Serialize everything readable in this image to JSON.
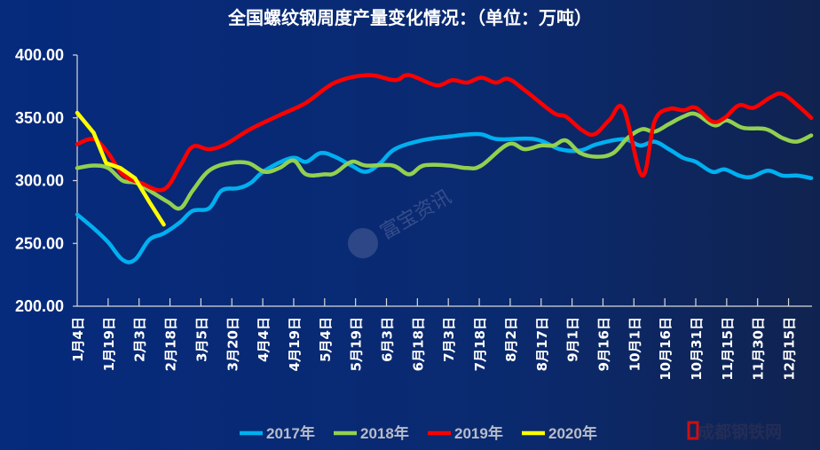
{
  "chart_data": {
    "type": "line",
    "title": "全国螺纹钢周度产量变化情况：（单位：万吨）",
    "xlabel": "",
    "ylabel": "",
    "ylim": [
      200,
      400
    ],
    "yticks": [
      "200.00",
      "250.00",
      "300.00",
      "350.00",
      "400.00"
    ],
    "categories": [
      "1月4日",
      "1月19日",
      "2月3日",
      "2月18日",
      "3月5日",
      "3月20日",
      "4月4日",
      "4月19日",
      "5月4日",
      "5月19日",
      "6月3日",
      "6月18日",
      "7月3日",
      "7月18日",
      "8月2日",
      "8月17日",
      "9月1日",
      "9月16日",
      "10月1日",
      "10月16日",
      "10月31日",
      "11月15日",
      "11月30日",
      "12月15日"
    ],
    "grid": false,
    "legend_position": "bottom",
    "series": [
      {
        "name": "2017年",
        "color": "#00b0f0",
        "points": [
          [
            "1-4",
            273
          ],
          [
            "1-12",
            262
          ],
          [
            "1-19",
            251
          ],
          [
            "1-26",
            237
          ],
          [
            "2-1",
            237
          ],
          [
            "2-8",
            253
          ],
          [
            "2-15",
            258
          ],
          [
            "2-23",
            267
          ],
          [
            "3-1",
            276
          ],
          [
            "3-9",
            278
          ],
          [
            "3-15",
            292
          ],
          [
            "3-23",
            294
          ],
          [
            "3-29",
            298
          ],
          [
            "4-5",
            308
          ],
          [
            "4-18",
            318
          ],
          [
            "4-25",
            315
          ],
          [
            "5-2",
            322
          ],
          [
            "5-9",
            319
          ],
          [
            "5-17",
            312
          ],
          [
            "5-24",
            307
          ],
          [
            "5-31",
            314
          ],
          [
            "6-7",
            325
          ],
          [
            "6-20",
            332
          ],
          [
            "7-3",
            335
          ],
          [
            "7-18",
            337
          ],
          [
            "7-27",
            333
          ],
          [
            "8-14",
            333
          ],
          [
            "8-26",
            325
          ],
          [
            "9-5",
            324
          ],
          [
            "9-13",
            329
          ],
          [
            "9-26",
            333
          ],
          [
            "10-4",
            328
          ],
          [
            "10-11",
            331
          ],
          [
            "10-18",
            325
          ],
          [
            "10-25",
            318
          ],
          [
            "10-31",
            315
          ],
          [
            "11-8",
            307
          ],
          [
            "11-14",
            309
          ],
          [
            "11-21",
            304
          ],
          [
            "11-27",
            303
          ],
          [
            "12-5",
            308
          ],
          [
            "12-12",
            304
          ],
          [
            "12-19",
            304
          ],
          [
            "12-26",
            302
          ]
        ]
      },
      {
        "name": "2018年",
        "color": "#92d050",
        "points": [
          [
            "1-4",
            310
          ],
          [
            "1-12",
            312
          ],
          [
            "1-19",
            310
          ],
          [
            "1-26",
            300
          ],
          [
            "2-2",
            298
          ],
          [
            "2-10",
            290
          ],
          [
            "2-17",
            283
          ],
          [
            "2-23",
            278
          ],
          [
            "3-1",
            292
          ],
          [
            "3-9",
            308
          ],
          [
            "3-19",
            314
          ],
          [
            "3-28",
            314
          ],
          [
            "4-5",
            307
          ],
          [
            "4-12",
            310
          ],
          [
            "4-19",
            316
          ],
          [
            "4-25",
            305
          ],
          [
            "5-4",
            305
          ],
          [
            "5-9",
            306
          ],
          [
            "5-17",
            315
          ],
          [
            "5-24",
            312
          ],
          [
            "6-6",
            312
          ],
          [
            "6-14",
            305
          ],
          [
            "6-21",
            312
          ],
          [
            "7-3",
            312
          ],
          [
            "7-12",
            310
          ],
          [
            "7-19",
            312
          ],
          [
            "8-1",
            329
          ],
          [
            "8-9",
            325
          ],
          [
            "8-17",
            328
          ],
          [
            "8-23",
            328
          ],
          [
            "8-29",
            332
          ],
          [
            "9-5",
            322
          ],
          [
            "9-13",
            319
          ],
          [
            "9-21",
            322
          ],
          [
            "9-28",
            334
          ],
          [
            "10-5",
            341
          ],
          [
            "10-11",
            339
          ],
          [
            "10-18",
            345
          ],
          [
            "10-25",
            351
          ],
          [
            "10-31",
            353
          ],
          [
            "11-9",
            344
          ],
          [
            "11-15",
            348
          ],
          [
            "11-23",
            342
          ],
          [
            "12-4",
            341
          ],
          [
            "12-12",
            334
          ],
          [
            "12-19",
            331
          ],
          [
            "12-26",
            336
          ]
        ]
      },
      {
        "name": "2019年",
        "color": "#ff0000",
        "points": [
          [
            "1-4",
            329
          ],
          [
            "1-12",
            333
          ],
          [
            "1-19",
            322
          ],
          [
            "1-26",
            305
          ],
          [
            "2-4",
            298
          ],
          [
            "2-15",
            293
          ],
          [
            "2-23",
            312
          ],
          [
            "3-1",
            327
          ],
          [
            "3-9",
            325
          ],
          [
            "3-17",
            329
          ],
          [
            "3-29",
            341
          ],
          [
            "4-12",
            352
          ],
          [
            "4-25",
            362
          ],
          [
            "5-9",
            378
          ],
          [
            "5-25",
            384
          ],
          [
            "6-7",
            380
          ],
          [
            "6-14",
            384
          ],
          [
            "6-27",
            376
          ],
          [
            "7-5",
            380
          ],
          [
            "7-12",
            378
          ],
          [
            "7-19",
            382
          ],
          [
            "7-26",
            378
          ],
          [
            "8-1",
            381
          ],
          [
            "8-9",
            372
          ],
          [
            "8-23",
            354
          ],
          [
            "8-29",
            351
          ],
          [
            "9-6",
            340
          ],
          [
            "9-12",
            337
          ],
          [
            "9-19",
            348
          ],
          [
            "9-26",
            357
          ],
          [
            "10-5",
            304
          ],
          [
            "10-11",
            347
          ],
          [
            "10-18",
            357
          ],
          [
            "10-25",
            356
          ],
          [
            "10-31",
            358
          ],
          [
            "11-8",
            347
          ],
          [
            "11-14",
            350
          ],
          [
            "11-21",
            360
          ],
          [
            "11-28",
            358
          ],
          [
            "12-6",
            366
          ],
          [
            "12-12",
            369
          ],
          [
            "12-20",
            359
          ],
          [
            "12-26",
            350
          ]
        ]
      },
      {
        "name": "2020年",
        "color": "#ffff00",
        "points": [
          [
            "1-4",
            354
          ],
          [
            "1-12",
            338
          ],
          [
            "1-18",
            314
          ],
          [
            "1-25",
            310
          ],
          [
            "2-1",
            302
          ],
          [
            "2-8",
            283
          ],
          [
            "2-15",
            265
          ]
        ]
      }
    ]
  },
  "watermark": "富宝资讯",
  "logo": "成都钢铁网"
}
